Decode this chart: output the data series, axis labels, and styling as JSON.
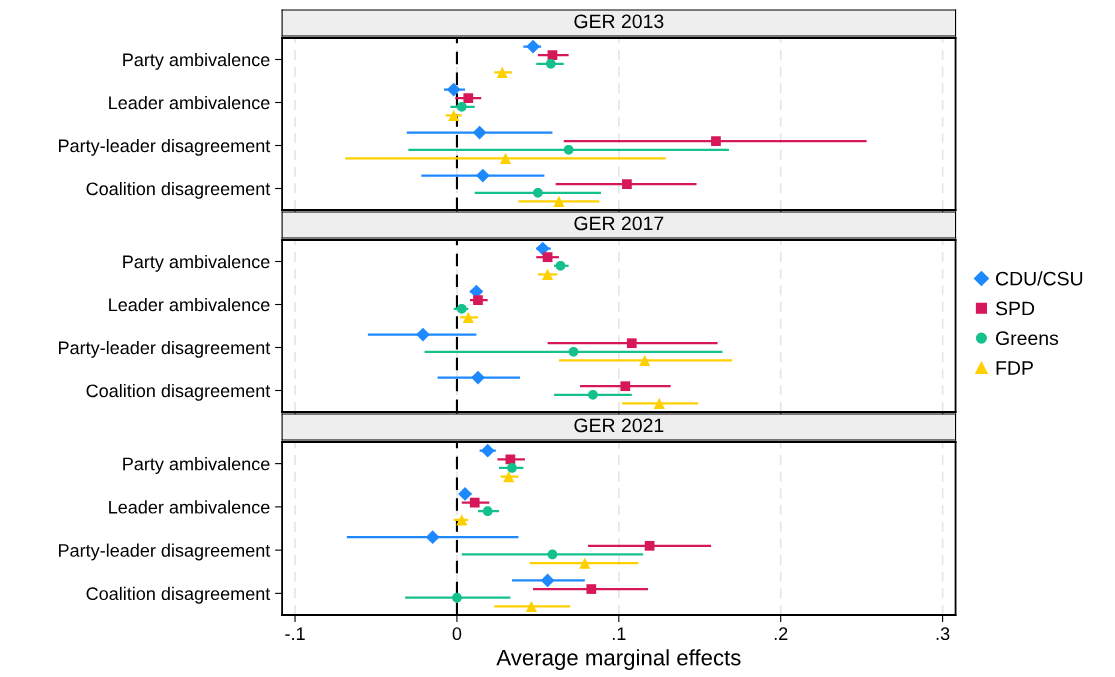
{
  "chart_data": [
    {
      "type": "scatter",
      "orientation": "horizontal",
      "title": "GER 2013",
      "categories": [
        "Party ambivalence",
        "Leader ambivalence",
        "Party-leader disagreement",
        "Coalition disagreement"
      ],
      "xlim": [
        -0.108,
        0.308
      ],
      "xticks": [
        {
          "value": -0.1,
          "label": null
        },
        {
          "value": 0,
          "label": null
        },
        {
          "value": 0.1,
          "label": null
        },
        {
          "value": 0.2,
          "label": null
        },
        {
          "value": 0.3,
          "label": null
        }
      ],
      "tick_labels": "y",
      "grid": "x",
      "ref_lines": [
        {
          "axis": "x",
          "value": 0,
          "color": "#000000",
          "line_style": "dashed"
        }
      ],
      "series": [
        {
          "color": "#1e88ff",
          "marker": "diamond",
          "values": [
            0.047,
            -0.002,
            0.014,
            0.016
          ],
          "errors": [
            [
              0.041,
              0.052
            ],
            [
              -0.008,
              0.005
            ],
            [
              -0.031,
              0.059
            ],
            [
              -0.022,
              0.054
            ]
          ]
        },
        {
          "color": "#d6185a",
          "marker": "square",
          "values": [
            0.059,
            0.007,
            0.16,
            0.105
          ],
          "errors": [
            [
              0.05,
              0.069
            ],
            [
              -0.001,
              0.015
            ],
            [
              0.066,
              0.253
            ],
            [
              0.061,
              0.148
            ]
          ]
        },
        {
          "color": "#14c08c",
          "marker": "circle",
          "values": [
            0.058,
            0.003,
            0.069,
            0.05
          ],
          "errors": [
            [
              0.049,
              0.066
            ],
            [
              -0.004,
              0.011
            ],
            [
              -0.03,
              0.168
            ],
            [
              0.011,
              0.089
            ]
          ]
        },
        {
          "color": "#ffd000",
          "marker": "triangle",
          "values": [
            0.028,
            -0.002,
            0.03,
            0.063
          ],
          "errors": [
            [
              0.023,
              0.034
            ],
            [
              -0.007,
              0.003
            ],
            [
              -0.069,
              0.129
            ],
            [
              0.038,
              0.088
            ]
          ]
        }
      ]
    },
    {
      "type": "scatter",
      "orientation": "horizontal",
      "title": "GER 2017",
      "categories": [
        "Party ambivalence",
        "Leader ambivalence",
        "Party-leader disagreement",
        "Coalition disagreement"
      ],
      "xlim": [
        -0.108,
        0.308
      ],
      "xticks": [
        {
          "value": -0.1,
          "label": null
        },
        {
          "value": 0,
          "label": null
        },
        {
          "value": 0.1,
          "label": null
        },
        {
          "value": 0.2,
          "label": null
        },
        {
          "value": 0.3,
          "label": null
        }
      ],
      "tick_labels": "y",
      "grid": "x",
      "legend": "right",
      "ref_lines": [
        {
          "axis": "x",
          "value": 0,
          "color": "#000000",
          "line_style": "dashed"
        }
      ],
      "series": [
        {
          "name": "CDU/CSU",
          "color": "#1e88ff",
          "marker": "diamond",
          "values": [
            0.053,
            0.012,
            -0.021,
            0.013
          ],
          "errors": [
            [
              0.049,
              0.058
            ],
            [
              0.008,
              0.015
            ],
            [
              -0.055,
              0.012
            ],
            [
              -0.012,
              0.039
            ]
          ]
        },
        {
          "name": "SPD",
          "color": "#d6185a",
          "marker": "square",
          "values": [
            0.056,
            0.013,
            0.108,
            0.104
          ],
          "errors": [
            [
              0.049,
              0.063
            ],
            [
              0.008,
              0.019
            ],
            [
              0.056,
              0.161
            ],
            [
              0.076,
              0.132
            ]
          ]
        },
        {
          "name": "Greens",
          "color": "#14c08c",
          "marker": "circle",
          "values": [
            0.064,
            0.003,
            0.072,
            0.084
          ],
          "errors": [
            [
              0.06,
              0.069
            ],
            [
              -0.002,
              0.007
            ],
            [
              -0.02,
              0.164
            ],
            [
              0.06,
              0.108
            ]
          ]
        },
        {
          "name": "FDP",
          "color": "#ffd000",
          "marker": "triangle",
          "values": [
            0.056,
            0.007,
            0.116,
            0.125
          ],
          "errors": [
            [
              0.05,
              0.062
            ],
            [
              0.002,
              0.013
            ],
            [
              0.063,
              0.17
            ],
            [
              0.102,
              0.149
            ]
          ]
        }
      ]
    },
    {
      "type": "scatter",
      "orientation": "horizontal",
      "title": "GER 2021",
      "xlabel": "Average marginal effects",
      "categories": [
        "Party ambivalence",
        "Leader ambivalence",
        "Party-leader disagreement",
        "Coalition disagreement"
      ],
      "xlim": [
        -0.108,
        0.308
      ],
      "xticks": [
        {
          "value": -0.1,
          "label": "-.1"
        },
        0,
        {
          "value": 0.1,
          "label": ".1"
        },
        {
          "value": 0.2,
          "label": ".2"
        },
        {
          "value": 0.3,
          "label": ".3"
        }
      ],
      "grid": "x",
      "ref_lines": [
        {
          "axis": "x",
          "value": 0,
          "color": "#000000",
          "line_style": "dashed"
        }
      ],
      "series": [
        {
          "color": "#1e88ff",
          "marker": "diamond",
          "values": [
            0.019,
            0.005,
            -0.015,
            0.056
          ],
          "errors": [
            [
              0.014,
              0.024
            ],
            [
              0.002,
              0.009
            ],
            [
              -0.068,
              0.038
            ],
            [
              0.034,
              0.079
            ]
          ]
        },
        {
          "color": "#d6185a",
          "marker": "square",
          "values": [
            0.033,
            0.011,
            0.119,
            0.083
          ],
          "errors": [
            [
              0.025,
              0.042
            ],
            [
              0.003,
              0.02
            ],
            [
              0.081,
              0.157
            ],
            [
              0.047,
              0.118
            ]
          ]
        },
        {
          "color": "#14c08c",
          "marker": "circle",
          "values": [
            0.034,
            0.019,
            0.059,
            0.0
          ],
          "errors": [
            [
              0.026,
              0.041
            ],
            [
              0.013,
              0.026
            ],
            [
              0.003,
              0.115
            ],
            [
              -0.032,
              0.033
            ]
          ]
        },
        {
          "color": "#ffd000",
          "marker": "triangle",
          "values": [
            0.032,
            0.003,
            0.079,
            0.046
          ],
          "errors": [
            [
              0.027,
              0.038
            ],
            [
              -0.002,
              0.007
            ],
            [
              0.045,
              0.112
            ],
            [
              0.023,
              0.07
            ]
          ]
        }
      ]
    }
  ]
}
